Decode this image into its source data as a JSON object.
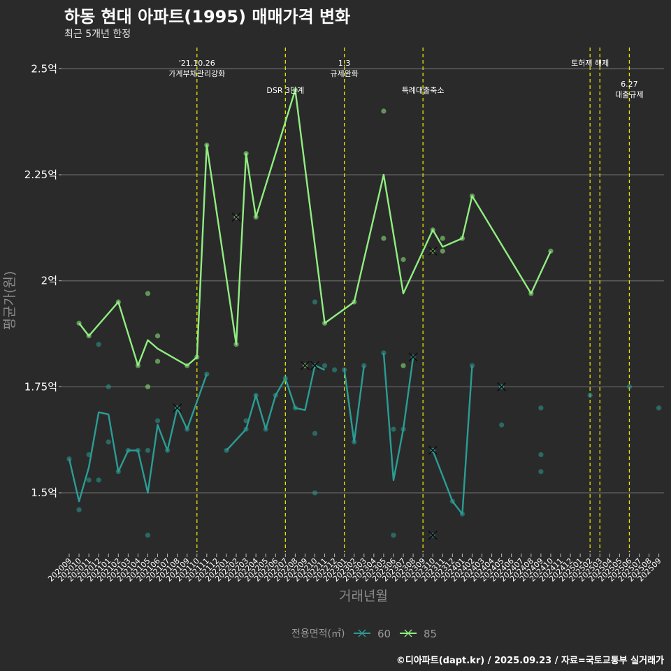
{
  "header": {
    "title": "하동 현대 아파트(1995) 매매가격 변화",
    "subtitle": "최근 5개년 한정"
  },
  "footer": {
    "caption": "©디아파트(dapt.kr) / 2025.09.23 / 자료=국토교통부 실거래가"
  },
  "colors": {
    "background": "#2b2a2b",
    "grid": "#595959",
    "event_line": "#e6e600",
    "series_60": "#2a9d94",
    "series_85": "#90ee80"
  },
  "chart_data": {
    "type": "line",
    "title": "하동 현대 아파트(1995) 매매가격 변화",
    "subtitle": "최근 5개년 한정",
    "xlabel": "거래년월",
    "ylabel": "평균가(원)",
    "ylim": [
      1.36,
      2.55
    ],
    "yticks": [
      1.5,
      1.75,
      2.0,
      2.25,
      2.5
    ],
    "ytick_labels": [
      "1.5억",
      "1.75억",
      "2억",
      "2.25억",
      "2.5억"
    ],
    "grid": true,
    "legend_position": "bottom",
    "legend_title": "전용면적(㎡)",
    "categories": [
      "202009",
      "202010",
      "202011",
      "202012",
      "202101",
      "202102",
      "202103",
      "202104",
      "202105",
      "202106",
      "202107",
      "202108",
      "202109",
      "202110",
      "202111",
      "202112",
      "202201",
      "202202",
      "202203",
      "202204",
      "202205",
      "202206",
      "202207",
      "202208",
      "202209",
      "202210",
      "202211",
      "202212",
      "202301",
      "202302",
      "202303",
      "202304",
      "202305",
      "202306",
      "202307",
      "202308",
      "202309",
      "202310",
      "202311",
      "202312",
      "202401",
      "202402",
      "202403",
      "202404",
      "202405",
      "202406",
      "202407",
      "202408",
      "202409",
      "202410",
      "202411",
      "202412",
      "202501",
      "202502",
      "202503",
      "202504",
      "202505",
      "202506",
      "202507",
      "202508",
      "202509"
    ],
    "series": [
      {
        "name": "60",
        "line_segments": [
          [
            [
              "202009",
              1.58
            ],
            [
              "202010",
              1.48
            ],
            [
              "202011",
              1.56
            ],
            [
              "202012",
              1.69
            ],
            [
              "202101",
              1.685
            ],
            [
              "202102",
              1.55
            ],
            [
              "202103",
              1.6
            ],
            [
              "202104",
              1.6
            ],
            [
              "202105",
              1.5
            ],
            [
              "202106",
              1.66
            ],
            [
              "202107",
              1.6
            ],
            [
              "202108",
              1.7
            ],
            [
              "202109",
              1.65
            ],
            [
              "202111",
              1.78
            ]
          ],
          [
            [
              "202201",
              1.6
            ],
            [
              "202203",
              1.65
            ],
            [
              "202204",
              1.73
            ],
            [
              "202205",
              1.65
            ],
            [
              "202206",
              1.73
            ],
            [
              "202207",
              1.77
            ],
            [
              "202208",
              1.7
            ],
            [
              "202209",
              1.695
            ],
            [
              "202210",
              1.8
            ],
            [
              "202211",
              1.79
            ]
          ],
          [
            [
              "202301",
              1.79
            ],
            [
              "202302",
              1.62
            ],
            [
              "202303",
              1.8
            ]
          ],
          [
            [
              "202305",
              1.83
            ],
            [
              "202306",
              1.53
            ],
            [
              "202307",
              1.65
            ],
            [
              "202308",
              1.82
            ]
          ],
          [
            [
              "202310",
              1.6
            ],
            [
              "202312",
              1.48
            ],
            [
              "202401",
              1.45
            ],
            [
              "202402",
              1.8
            ]
          ]
        ],
        "points": [
          [
            "202009",
            1.58
          ],
          [
            "202010",
            1.46
          ],
          [
            "202011",
            1.53
          ],
          [
            "202011",
            1.59
          ],
          [
            "202012",
            1.53
          ],
          [
            "202012",
            1.85
          ],
          [
            "202101",
            1.62
          ],
          [
            "202101",
            1.75
          ],
          [
            "202102",
            1.55
          ],
          [
            "202103",
            1.6
          ],
          [
            "202104",
            1.6
          ],
          [
            "202105",
            1.6
          ],
          [
            "202105",
            1.4
          ],
          [
            "202106",
            1.67
          ],
          [
            "202107",
            1.6
          ],
          [
            "202108",
            1.7
          ],
          [
            "202109",
            1.65
          ],
          [
            "202111",
            1.78
          ],
          [
            "202201",
            1.6
          ],
          [
            "202203",
            1.67
          ],
          [
            "202203",
            1.65
          ],
          [
            "202204",
            1.73
          ],
          [
            "202205",
            1.65
          ],
          [
            "202206",
            1.73
          ],
          [
            "202207",
            1.77
          ],
          [
            "202208",
            1.7
          ],
          [
            "202210",
            1.95
          ],
          [
            "202210",
            1.64
          ],
          [
            "202210",
            1.5
          ],
          [
            "202211",
            1.8
          ],
          [
            "202212",
            1.79
          ],
          [
            "202301",
            1.79
          ],
          [
            "202302",
            1.62
          ],
          [
            "202303",
            1.8
          ],
          [
            "202305",
            1.83
          ],
          [
            "202306",
            1.65
          ],
          [
            "202306",
            1.4
          ],
          [
            "202307",
            1.65
          ],
          [
            "202310",
            1.6
          ],
          [
            "202312",
            1.48
          ],
          [
            "202401",
            1.45
          ],
          [
            "202402",
            1.8
          ],
          [
            "202405",
            1.75
          ],
          [
            "202405",
            1.66
          ],
          [
            "202409",
            1.7
          ],
          [
            "202409",
            1.59
          ],
          [
            "202409",
            1.55
          ],
          [
            "202502",
            1.73
          ],
          [
            "202506",
            1.75
          ],
          [
            "202509",
            1.7
          ]
        ],
        "cancelled": [
          [
            "202108",
            1.7
          ],
          [
            "202210",
            1.8
          ],
          [
            "202308",
            1.82
          ],
          [
            "202310",
            1.6
          ],
          [
            "202310",
            1.4
          ],
          [
            "202405",
            1.75
          ]
        ]
      },
      {
        "name": "85",
        "line_segments": [
          [
            [
              "202010",
              1.9
            ],
            [
              "202011",
              1.87
            ],
            [
              "202102",
              1.95
            ],
            [
              "202104",
              1.8
            ],
            [
              "202105",
              1.86
            ],
            [
              "202106",
              1.84
            ],
            [
              "202109",
              1.8
            ],
            [
              "202110",
              1.82
            ],
            [
              "202111",
              2.32
            ],
            [
              "202202",
              1.85
            ],
            [
              "202203",
              2.3
            ],
            [
              "202204",
              2.15
            ],
            [
              "202208",
              2.45
            ],
            [
              "202211",
              1.9
            ],
            [
              "202302",
              1.95
            ],
            [
              "202305",
              2.25
            ],
            [
              "202307",
              1.97
            ],
            [
              "202310",
              2.12
            ],
            [
              "202311",
              2.08
            ],
            [
              "202401",
              2.1
            ],
            [
              "202402",
              2.2
            ],
            [
              "202408",
              1.97
            ],
            [
              "202410",
              2.07
            ]
          ]
        ],
        "points": [
          [
            "202010",
            1.9
          ],
          [
            "202011",
            1.87
          ],
          [
            "202102",
            1.95
          ],
          [
            "202104",
            1.8
          ],
          [
            "202105",
            1.97
          ],
          [
            "202105",
            1.75
          ],
          [
            "202106",
            1.87
          ],
          [
            "202106",
            1.81
          ],
          [
            "202109",
            1.8
          ],
          [
            "202110",
            1.82
          ],
          [
            "202111",
            2.32
          ],
          [
            "202202",
            1.85
          ],
          [
            "202203",
            2.3
          ],
          [
            "202204",
            2.15
          ],
          [
            "202208",
            2.45
          ],
          [
            "202211",
            1.9
          ],
          [
            "202302",
            1.95
          ],
          [
            "202305",
            2.4
          ],
          [
            "202305",
            2.1
          ],
          [
            "202307",
            2.05
          ],
          [
            "202307",
            1.8
          ],
          [
            "202310",
            2.12
          ],
          [
            "202311",
            2.1
          ],
          [
            "202311",
            2.07
          ],
          [
            "202401",
            2.1
          ],
          [
            "202402",
            2.2
          ],
          [
            "202408",
            1.97
          ],
          [
            "202410",
            2.07
          ]
        ],
        "cancelled": [
          [
            "202202",
            2.15
          ],
          [
            "202209",
            1.8
          ],
          [
            "202310",
            2.07
          ]
        ]
      }
    ],
    "events": [
      {
        "x": "202110",
        "label": [
          "'21.10.26",
          "가계부채관리강화"
        ],
        "row": 1
      },
      {
        "x": "202207",
        "label": [
          "DSR 3단계"
        ],
        "row": 2
      },
      {
        "x": "202301",
        "label": [
          "1.3",
          "규제완화"
        ],
        "row": 1
      },
      {
        "x": "202309",
        "label": [
          "특례대출축소"
        ],
        "row": 2
      },
      {
        "x": "202502",
        "label": [
          "토허제 해제"
        ],
        "row": 1
      },
      {
        "x": "202503",
        "label": [],
        "row": 1
      },
      {
        "x": "202506",
        "label": [
          "6.27",
          "대출규제"
        ],
        "row": 3
      }
    ]
  }
}
